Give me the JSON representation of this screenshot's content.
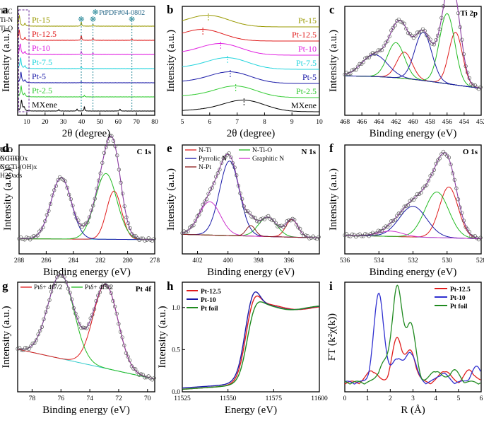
{
  "figure": "XRD, XPS and XAS panels",
  "chart_data": [
    {
      "panel": "a",
      "type": "line",
      "xlabel": "2θ (degree)",
      "ylabel": "Intensity (a.u.)",
      "xlim": [
        5,
        80
      ],
      "xticks": [
        10,
        20,
        30,
        40,
        50,
        60,
        70,
        80
      ],
      "annotation": "PtPDF#04-0802",
      "reference_peaks": [
        39.8,
        46.2,
        67.5
      ],
      "series": [
        {
          "name": "MXene",
          "color": "#000000",
          "peaks": [
            [
              7.1,
              1.0
            ],
            [
              8.5,
              0.35
            ],
            [
              27.5,
              0.15
            ],
            [
              37.5,
              0.2
            ],
            [
              41.5,
              0.4
            ],
            [
              61.0,
              0.2
            ]
          ]
        },
        {
          "name": "Pt-2.5",
          "color": "#33cc33",
          "peaks": [
            [
              6.9,
              1.0
            ],
            [
              8.8,
              0.3
            ],
            [
              41.5,
              0.15
            ]
          ]
        },
        {
          "name": "Pt-5",
          "color": "#1a1aa8",
          "peaks": [
            [
              6.8,
              1.0
            ],
            [
              9.0,
              0.25
            ],
            [
              39.8,
              0.1
            ]
          ]
        },
        {
          "name": "Pt-7.5",
          "color": "#22d4dd",
          "peaks": [
            [
              6.6,
              1.0
            ],
            [
              9.0,
              0.25
            ],
            [
              39.8,
              0.2
            ]
          ]
        },
        {
          "name": "Pt-10",
          "color": "#e020e0",
          "peaks": [
            [
              6.4,
              1.0
            ],
            [
              9.0,
              0.25
            ],
            [
              39.8,
              0.3
            ],
            [
              46.2,
              0.15
            ]
          ]
        },
        {
          "name": "Pt-12.5",
          "color": "#e01c1c",
          "peaks": [
            [
              5.8,
              1.0
            ],
            [
              9.0,
              0.25
            ],
            [
              39.8,
              0.5
            ],
            [
              46.2,
              0.25
            ],
            [
              67.5,
              0.15
            ]
          ]
        },
        {
          "name": "Pt-15",
          "color": "#999900",
          "peaks": [
            [
              5.9,
              1.0
            ],
            [
              9.0,
              0.25
            ],
            [
              39.8,
              0.4
            ],
            [
              46.2,
              0.2
            ]
          ]
        }
      ]
    },
    {
      "panel": "b",
      "type": "line",
      "xlabel": "2θ (degree)",
      "ylabel": "Intensity (a.u.)",
      "xlim": [
        5,
        10
      ],
      "xticks": [
        5,
        6,
        7,
        8,
        9,
        10
      ],
      "series": [
        {
          "name": "MXene",
          "color": "#000000",
          "peak": 7.25
        },
        {
          "name": "Pt-2.5",
          "color": "#33cc33",
          "peak": 6.95
        },
        {
          "name": "Pt-5",
          "color": "#1a1aa8",
          "peak": 6.75
        },
        {
          "name": "Pt-7.5",
          "color": "#22d4dd",
          "peak": 6.65
        },
        {
          "name": "Pt-10",
          "color": "#e020e0",
          "peak": 6.4
        },
        {
          "name": "Pt-12.5",
          "color": "#e01c1c",
          "peak": 5.75
        },
        {
          "name": "Pt-15",
          "color": "#999900",
          "peak": 5.95
        }
      ]
    },
    {
      "panel": "c",
      "type": "line",
      "title": "Ti 2p",
      "xlabel": "Binding energy (eV)",
      "ylabel": "Intensity (a.u.)",
      "xlim": [
        468,
        452
      ],
      "xticks": [
        468,
        466,
        464,
        462,
        460,
        458,
        456,
        454,
        452
      ],
      "legend": [
        {
          "name": "Ti-C",
          "color": "#e01c1c"
        },
        {
          "name": "Ti-N",
          "color": "#22bb22"
        },
        {
          "name": "Ti-O",
          "color": "#1a1aa8"
        }
      ],
      "components": [
        {
          "name": "Ti-C",
          "color": "#e01c1c",
          "center": 455.0,
          "amp": 0.6,
          "width": 0.8
        },
        {
          "name": "Ti-C",
          "color": "#e01c1c",
          "center": 461.0,
          "amp": 0.3,
          "width": 0.9
        },
        {
          "name": "Ti-N",
          "color": "#22bb22",
          "center": 456.0,
          "amp": 0.8,
          "width": 0.9
        },
        {
          "name": "Ti-N",
          "color": "#22bb22",
          "center": 462.0,
          "amp": 0.4,
          "width": 1.0
        },
        {
          "name": "Ti-O",
          "color": "#1a1aa8",
          "center": 458.8,
          "amp": 0.55,
          "width": 1.0
        },
        {
          "name": "Ti-O",
          "color": "#1a1aa8",
          "center": 464.5,
          "amp": 0.25,
          "width": 1.5
        }
      ]
    },
    {
      "panel": "d",
      "type": "line",
      "title": "C 1s",
      "xlabel": "Binding energy (eV)",
      "ylabel": "Intensity (a.u.)",
      "xlim": [
        288,
        278
      ],
      "xticks": [
        288,
        286,
        284,
        282,
        280,
        278
      ],
      "legend": [
        {
          "name": "C-Ti",
          "color": "#e01c1c"
        },
        {
          "name": "C-Ti-O",
          "color": "#22bb22"
        },
        {
          "name": "C=C",
          "color": "#1a1aa8"
        }
      ],
      "components": [
        {
          "name": "C-Ti",
          "color": "#e01c1c",
          "center": 281.0,
          "amp": 0.55,
          "width": 0.55
        },
        {
          "name": "C-Ti-O",
          "color": "#22bb22",
          "center": 281.6,
          "amp": 0.75,
          "width": 0.8
        },
        {
          "name": "C=C",
          "color": "#1a1aa8",
          "center": 284.9,
          "amp": 0.7,
          "width": 0.75
        }
      ]
    },
    {
      "panel": "e",
      "type": "line",
      "title": "N 1s",
      "xlabel": "Binding energy (eV)",
      "ylabel": "Intensity (a.u.)",
      "xlim": [
        403,
        394
      ],
      "xticks": [
        402,
        400,
        398,
        396
      ],
      "legend": [
        {
          "name": "N-Ti",
          "color": "#e01c1c"
        },
        {
          "name": "N-Ti-O",
          "color": "#22bb22"
        },
        {
          "name": "Pyrrolic N",
          "color": "#1a1aa8"
        },
        {
          "name": "Graphitic N",
          "color": "#cc33cc"
        },
        {
          "name": "N-Pt",
          "color": "#8b1a1a"
        }
      ],
      "components": [
        {
          "name": "N-Ti",
          "color": "#e01c1c",
          "center": 395.8,
          "amp": 0.2,
          "width": 0.4
        },
        {
          "name": "N-Ti-O",
          "color": "#22bb22",
          "center": 397.4,
          "amp": 0.22,
          "width": 0.6
        },
        {
          "name": "Pyrrolic N",
          "color": "#1a1aa8",
          "center": 399.9,
          "amp": 0.85,
          "width": 0.65
        },
        {
          "name": "Graphitic N",
          "color": "#cc33cc",
          "center": 401.2,
          "amp": 0.38,
          "width": 0.7
        },
        {
          "name": "N-Pt",
          "color": "#8b1a1a",
          "center": 398.5,
          "amp": 0.12,
          "width": 0.3
        }
      ]
    },
    {
      "panel": "f",
      "type": "line",
      "title": "O 1s",
      "xlabel": "Binding energy (eV)",
      "ylabel": "Intensity (a.u.)",
      "xlim": [
        536,
        528
      ],
      "xticks": [
        536,
        534,
        532,
        530,
        528
      ],
      "legend": [
        {
          "name": "Ti-O",
          "color": "#e01c1c"
        },
        {
          "name": "NC-Ti-Ox",
          "color": "#22bb22"
        },
        {
          "name": "NC-Ti-(OH)x",
          "color": "#1a1aa8"
        },
        {
          "name": "H2Oads",
          "color": "#cc33cc"
        }
      ],
      "components": [
        {
          "name": "Ti-O",
          "color": "#e01c1c",
          "center": 529.9,
          "amp": 0.58,
          "width": 0.55
        },
        {
          "name": "NC-Ti-Ox",
          "color": "#22bb22",
          "center": 530.6,
          "amp": 0.52,
          "width": 0.7
        },
        {
          "name": "NC-Ti-(OH)x",
          "color": "#1a1aa8",
          "center": 532.0,
          "amp": 0.35,
          "width": 0.8
        },
        {
          "name": "H2Oads",
          "color": "#cc33cc",
          "center": 533.3,
          "amp": 0.06,
          "width": 0.7
        }
      ]
    },
    {
      "panel": "g",
      "type": "line",
      "title": "Pt 4f",
      "xlabel": "Binding energy (eV)",
      "ylabel": "Intensity (a.u.)",
      "xlim": [
        79,
        69.5
      ],
      "xticks": [
        78,
        76,
        74,
        72,
        70
      ],
      "legend": [
        {
          "name": "Ptδ+ 4f7/2",
          "color": "#e01c1c"
        },
        {
          "name": "Ptδ+ 4f5/2",
          "color": "#22bb22"
        }
      ],
      "components": [
        {
          "name": "Ptδ+ 4f7/2",
          "color": "#e01c1c",
          "center": 72.9,
          "amp": 0.95,
          "width": 0.85
        },
        {
          "name": "Ptδ+ 4f5/2",
          "color": "#22bb22",
          "center": 76.0,
          "amp": 0.95,
          "width": 0.9
        }
      ]
    },
    {
      "panel": "h",
      "type": "line",
      "xlabel": "Energy (eV)",
      "ylabel": "Intensity (a.u.)",
      "xlim": [
        11525,
        11600
      ],
      "ylim": [
        0,
        1.3
      ],
      "xticks": [
        11525,
        11550,
        11575,
        11600
      ],
      "yticks": [
        0.0,
        0.5,
        1.0
      ],
      "series": [
        {
          "name": "Pt-12.5",
          "color": "#e01c1c",
          "edge": 11563,
          "whiteline": 1.17
        },
        {
          "name": "Pt-10",
          "color": "#1a1aa8",
          "edge": 11562.5,
          "whiteline": 1.21
        },
        {
          "name": "Pt foil",
          "color": "#1f8a1f",
          "edge": 11564,
          "whiteline": 1.07
        }
      ]
    },
    {
      "panel": "i",
      "type": "line",
      "xlabel": "R (Å)",
      "ylabel": "FT (k²χ(k))",
      "xlim": [
        0,
        6
      ],
      "xticks": [
        0,
        1,
        2,
        3,
        4,
        5,
        6
      ],
      "series": [
        {
          "name": "Pt-12.5",
          "color": "#e01c1c",
          "peaks": [
            [
              2.3,
              0.72
            ],
            [
              2.9,
              0.5
            ],
            [
              1.2,
              0.2
            ],
            [
              4.4,
              0.2
            ],
            [
              5.5,
              0.2
            ]
          ]
        },
        {
          "name": "Pt-10",
          "color": "#3030d0",
          "peaks": [
            [
              1.5,
              1.47
            ],
            [
              2.3,
              0.4
            ],
            [
              2.9,
              0.5
            ],
            [
              4.3,
              0.15
            ],
            [
              5.8,
              0.25
            ]
          ]
        },
        {
          "name": "Pt foil",
          "color": "#1f8a1f",
          "peaks": [
            [
              2.3,
              1.57
            ],
            [
              2.9,
              0.95
            ],
            [
              1.7,
              0.3
            ],
            [
              4.0,
              0.2
            ],
            [
              4.8,
              0.2
            ]
          ]
        }
      ]
    }
  ]
}
